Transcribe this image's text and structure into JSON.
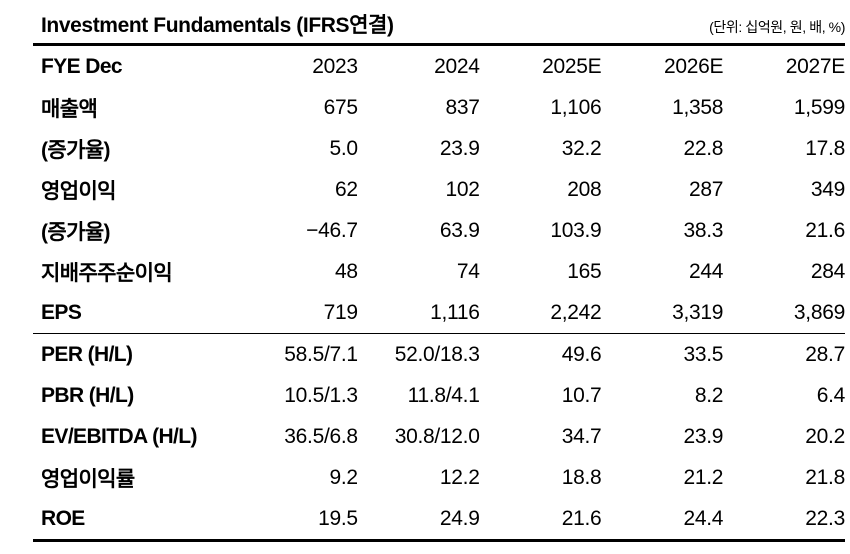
{
  "header": {
    "title": "Investment Fundamentals (IFRS연결)",
    "unit_note": "(단위: 십억원, 원, 배, %)"
  },
  "table": {
    "columns": [
      "FYE Dec",
      "2023",
      "2024",
      "2025E",
      "2026E",
      "2027E"
    ],
    "sections": [
      {
        "rows": [
          {
            "label": "매출액",
            "values": [
              "675",
              "837",
              "1,106",
              "1,358",
              "1,599"
            ]
          },
          {
            "label": "(증가율)",
            "values": [
              "5.0",
              "23.9",
              "32.2",
              "22.8",
              "17.8"
            ]
          },
          {
            "label": "영업이익",
            "values": [
              "62",
              "102",
              "208",
              "287",
              "349"
            ]
          },
          {
            "label": "(증가율)",
            "values": [
              "−46.7",
              "63.9",
              "103.9",
              "38.3",
              "21.6"
            ]
          },
          {
            "label": "지배주주순이익",
            "values": [
              "48",
              "74",
              "165",
              "244",
              "284"
            ]
          },
          {
            "label": "EPS",
            "values": [
              "719",
              "1,116",
              "2,242",
              "3,319",
              "3,869"
            ]
          }
        ]
      },
      {
        "rows": [
          {
            "label": "PER (H/L)",
            "values": [
              "58.5/7.1",
              "52.0/18.3",
              "49.6",
              "33.5",
              "28.7"
            ]
          },
          {
            "label": "PBR (H/L)",
            "values": [
              "10.5/1.3",
              "11.8/4.1",
              "10.7",
              "8.2",
              "6.4"
            ]
          },
          {
            "label": "EV/EBITDA (H/L)",
            "values": [
              "36.5/6.8",
              "30.8/12.0",
              "34.7",
              "23.9",
              "20.2"
            ]
          },
          {
            "label": "영업이익률",
            "values": [
              "9.2",
              "12.2",
              "18.8",
              "21.2",
              "21.8"
            ]
          },
          {
            "label": "ROE",
            "values": [
              "19.5",
              "24.9",
              "21.6",
              "24.4",
              "22.3"
            ]
          }
        ]
      }
    ]
  }
}
